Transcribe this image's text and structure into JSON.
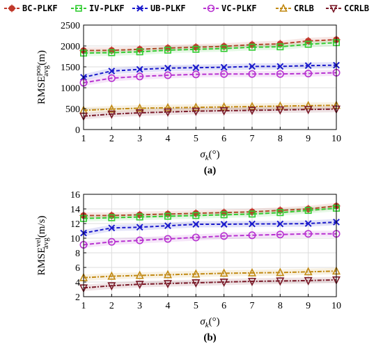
{
  "legend": {
    "position": "top",
    "entries": [
      {
        "label": "BC-PLKF",
        "color": "#c0392b",
        "marker": "star"
      },
      {
        "label": "IV-PLKF",
        "color": "#33cc33",
        "marker": "square"
      },
      {
        "label": "UB-PLKF",
        "color": "#1a1acc",
        "marker": "x"
      },
      {
        "label": "VC-PLKF",
        "color": "#b833d1",
        "marker": "circle"
      },
      {
        "label": "CRLB",
        "color": "#c28a14",
        "marker": "triangle-up"
      },
      {
        "label": "CCRLB",
        "color": "#7a1a28",
        "marker": "triangle-down"
      }
    ]
  },
  "chart_data": [
    {
      "type": "line",
      "panel_label": "(a)",
      "xlabel_symbol": "σ",
      "xlabel_sub": "k",
      "xlabel_unit": "(°)",
      "ylabel_main": "RMSE",
      "ylabel_sup": "pos",
      "ylabel_sub": "avg",
      "ylabel_unit": "(m)",
      "x": [
        1,
        2,
        3,
        4,
        5,
        6,
        7,
        8,
        9,
        10
      ],
      "xlim": [
        1,
        10
      ],
      "ylim": [
        0,
        2500
      ],
      "yticks": [
        0,
        500,
        1000,
        1500,
        2000,
        2500
      ],
      "grid": true,
      "series": [
        {
          "name": "BC-PLKF",
          "values": [
            1890,
            1895,
            1920,
            1950,
            1970,
            1990,
            2030,
            2050,
            2120,
            2150
          ]
        },
        {
          "name": "IV-PLKF",
          "values": [
            1830,
            1840,
            1860,
            1900,
            1920,
            1940,
            1970,
            1980,
            2040,
            2080
          ]
        },
        {
          "name": "UB-PLKF",
          "values": [
            1250,
            1400,
            1440,
            1470,
            1480,
            1490,
            1510,
            1510,
            1530,
            1540
          ]
        },
        {
          "name": "VC-PLKF",
          "values": [
            1120,
            1230,
            1270,
            1300,
            1320,
            1330,
            1330,
            1330,
            1340,
            1360
          ]
        },
        {
          "name": "CRLB",
          "values": [
            460,
            490,
            510,
            520,
            530,
            540,
            550,
            560,
            570,
            580
          ]
        },
        {
          "name": "CCRLB",
          "values": [
            320,
            370,
            400,
            420,
            440,
            450,
            460,
            470,
            480,
            490
          ]
        }
      ]
    },
    {
      "type": "line",
      "panel_label": "(b)",
      "xlabel_symbol": "σ",
      "xlabel_sub": "k",
      "xlabel_unit": "(°)",
      "ylabel_main": "RMSE",
      "ylabel_sup": "vel",
      "ylabel_sub": "avg",
      "ylabel_unit": "(m/s)",
      "x": [
        1,
        2,
        3,
        4,
        5,
        6,
        7,
        8,
        9,
        10
      ],
      "xlim": [
        1,
        10
      ],
      "ylim": [
        2,
        16
      ],
      "yticks": [
        2,
        4,
        6,
        8,
        10,
        12,
        14,
        16
      ],
      "grid": true,
      "series": [
        {
          "name": "BC-PLKF",
          "values": [
            13.1,
            13.1,
            13.2,
            13.3,
            13.4,
            13.5,
            13.6,
            13.8,
            14.0,
            14.4
          ]
        },
        {
          "name": "IV-PLKF",
          "values": [
            12.7,
            12.8,
            12.9,
            13.0,
            13.1,
            13.2,
            13.3,
            13.5,
            13.8,
            14.1
          ]
        },
        {
          "name": "UB-PLKF",
          "values": [
            10.7,
            11.4,
            11.5,
            11.7,
            11.9,
            11.9,
            11.95,
            11.95,
            12.0,
            12.2
          ]
        },
        {
          "name": "VC-PLKF",
          "values": [
            9.1,
            9.5,
            9.7,
            9.9,
            10.1,
            10.3,
            10.4,
            10.5,
            10.6,
            10.6
          ]
        },
        {
          "name": "CRLB",
          "values": [
            4.6,
            4.8,
            4.9,
            5.0,
            5.1,
            5.2,
            5.25,
            5.3,
            5.4,
            5.5
          ]
        },
        {
          "name": "CCRLB",
          "values": [
            3.2,
            3.5,
            3.7,
            3.8,
            3.9,
            4.0,
            4.1,
            4.15,
            4.2,
            4.3
          ]
        }
      ]
    }
  ]
}
